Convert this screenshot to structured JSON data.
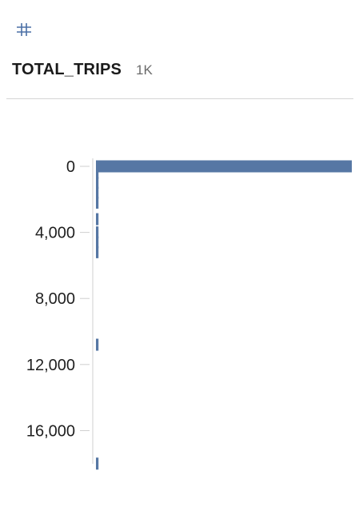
{
  "field": {
    "type_icon": "number-hash-icon",
    "name": "TOTAL_TRIPS",
    "distinct_count": "1K"
  },
  "colors": {
    "bar": "#5677a4",
    "axis": "#cfcfcf",
    "icon": "#4a6fa5"
  },
  "chart_data": {
    "type": "bar",
    "orientation": "horizontal",
    "title": "",
    "xlabel": "",
    "ylabel": "",
    "ylim": [
      0,
      18400
    ],
    "y_ticks": [
      0,
      4000,
      8000,
      12000,
      16000
    ],
    "y_tick_labels": [
      "0",
      "4,000",
      "8,000",
      "12,000",
      "16,000"
    ],
    "grid": false,
    "bins": [
      {
        "value": 0,
        "relative_count": 1.0
      },
      {
        "value": 400,
        "relative_count": 0.01
      },
      {
        "value": 1000,
        "relative_count": 0.01
      },
      {
        "value": 1600,
        "relative_count": 0.01
      },
      {
        "value": 2200,
        "relative_count": 0.01
      },
      {
        "value": 3200,
        "relative_count": 0.01
      },
      {
        "value": 4000,
        "relative_count": 0.01
      },
      {
        "value": 4600,
        "relative_count": 0.01
      },
      {
        "value": 5200,
        "relative_count": 0.01
      },
      {
        "value": 10800,
        "relative_count": 0.01
      },
      {
        "value": 18000,
        "relative_count": 0.01
      }
    ]
  }
}
